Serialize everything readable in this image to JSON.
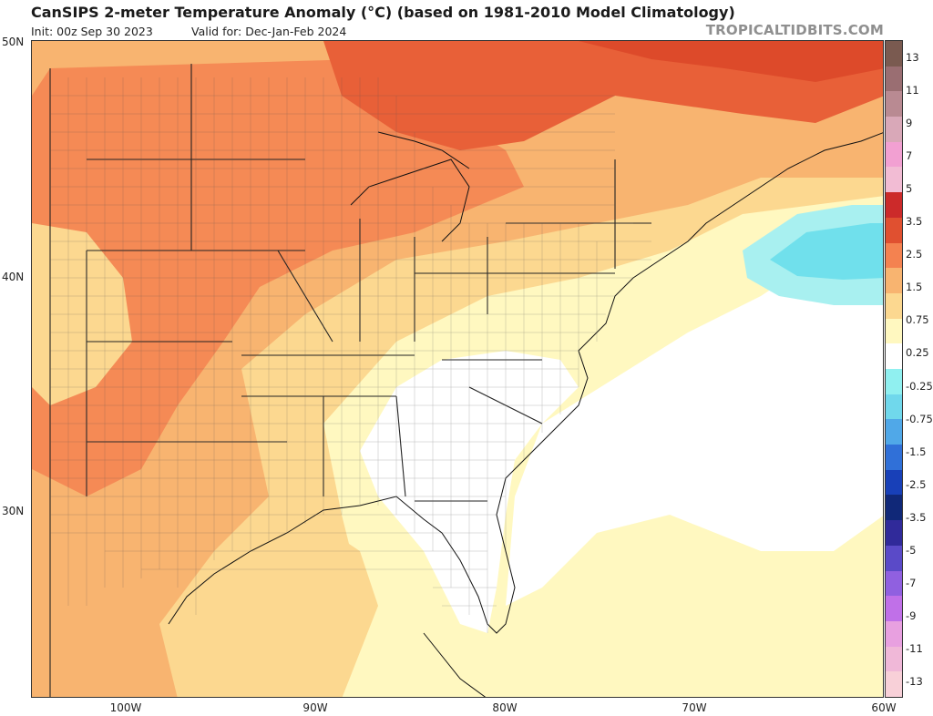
{
  "header": {
    "title": "CanSIPS 2-meter Temperature Anomaly (°C) (based on 1981-2010 Model Climatology)",
    "init": "Init: 00z Sep 30 2023",
    "valid": "Valid for: Dec-Jan-Feb 2024",
    "credit": "TROPICALTIDBITS.COM"
  },
  "map": {
    "region": "Eastern United States",
    "lon_range": [
      -105,
      -60
    ],
    "lat_range": [
      22.5,
      50
    ],
    "lat_labels": [
      {
        "value": 50,
        "text": "50N"
      },
      {
        "value": 40,
        "text": "40N"
      },
      {
        "value": 30,
        "text": "30N"
      }
    ],
    "lon_labels": [
      {
        "value": -100,
        "text": "100W"
      },
      {
        "value": -90,
        "text": "90W"
      },
      {
        "value": -80,
        "text": "80W"
      },
      {
        "value": -70,
        "text": "70W"
      },
      {
        "value": -60,
        "text": "60W"
      }
    ]
  },
  "colorbar": {
    "labels": [
      "13",
      "11",
      "9",
      "7",
      "5",
      "3.5",
      "2.5",
      "1.5",
      "0.75",
      "0.25",
      "-0.25",
      "-0.75",
      "-1.5",
      "-2.5",
      "-3.5",
      "-5",
      "-7",
      "-9",
      "-11",
      "-13"
    ],
    "colors": [
      "#7a5a50",
      "#9a6e72",
      "#b98a92",
      "#d9a8b8",
      "#f2a0d2",
      "#f2bcd4",
      "#cc2a2a",
      "#e05030",
      "#f48250",
      "#f8b470",
      "#fcd890",
      "#fff8c0",
      "#ffffff",
      "#90f0f0",
      "#70d8ec",
      "#50a8e8",
      "#3070d8",
      "#1840b8",
      "#102878",
      "#302a9a",
      "#5a4ac8",
      "#9060e0",
      "#c070e8",
      "#e8a0e0",
      "#f0b8d8",
      "#f8d0d8"
    ]
  }
}
